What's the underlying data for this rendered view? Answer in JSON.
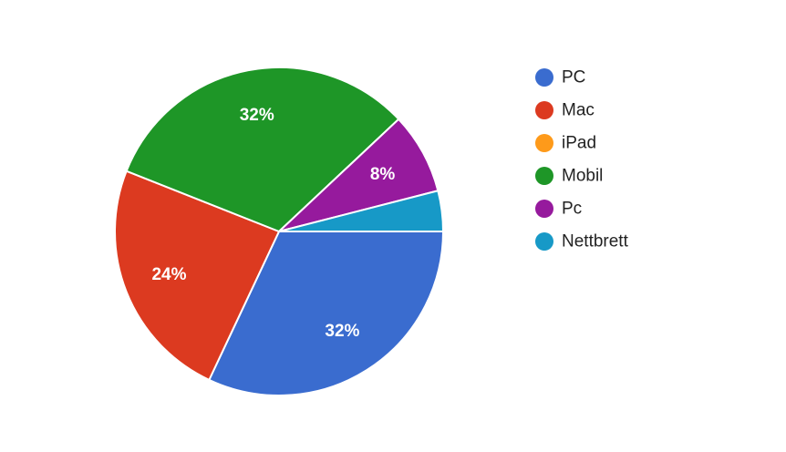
{
  "chart_data": {
    "type": "pie",
    "legend_position": "right",
    "slices": [
      {
        "name": "PC",
        "value": 32,
        "label": "32%",
        "color": "#3a6ccf"
      },
      {
        "name": "Mac",
        "value": 24,
        "label": "24%",
        "color": "#dc3a20"
      },
      {
        "name": "iPad",
        "value": 0,
        "label": "",
        "color": "#fe9a1a"
      },
      {
        "name": "Mobil",
        "value": 32,
        "label": "32%",
        "color": "#1e9627"
      },
      {
        "name": "Pc",
        "value": 8,
        "label": "8%",
        "color": "#961a9d"
      },
      {
        "name": "Nettbrett",
        "value": 4,
        "label": "",
        "color": "#1799c7"
      }
    ]
  }
}
